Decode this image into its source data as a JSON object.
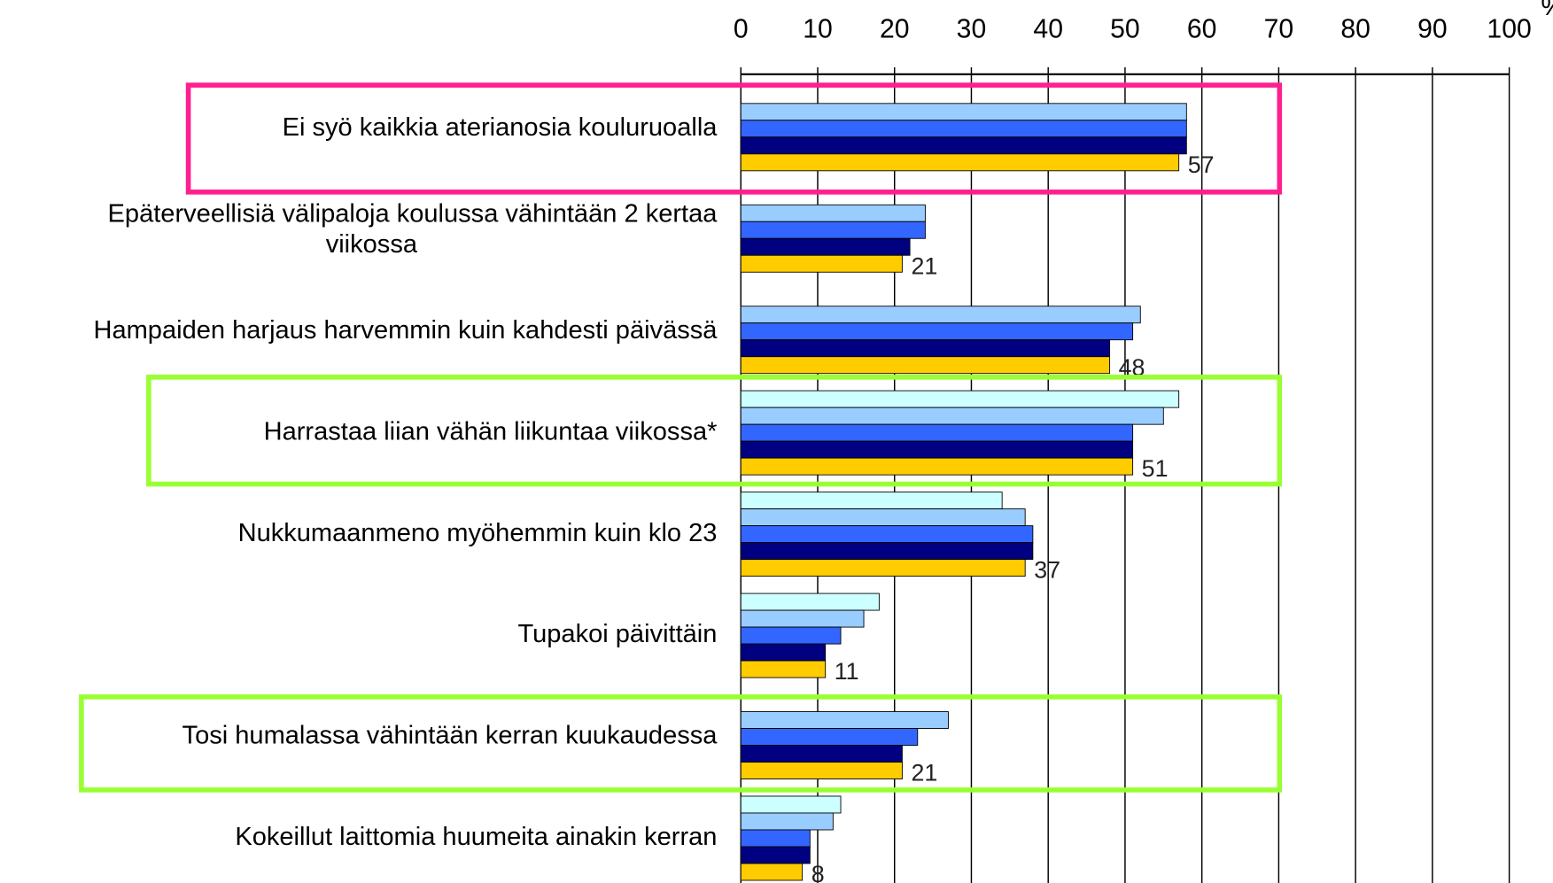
{
  "chart_data": {
    "type": "bar",
    "orientation": "horizontal",
    "xlabel": "%",
    "categories": [
      "Ei syö kaikkia aterianosia kouluruoalla",
      "Epäterveellisiä välipaloja koulussa vähintään 2 kertaa viikossa",
      "Hampaiden harjaus harvemmin kuin kahdesti päivässä",
      "Harrastaa liian vähän liikuntaa viikossa*",
      "Nukkumaanmeno myöhemmin kuin klo 23",
      "Tupakoi päivittäin",
      "Tosi humalassa vähintään kerran kuukaudessa",
      "Kokeillut laittomia huumeita ainakin kerran"
    ],
    "series": [
      {
        "color": "#ccffff",
        "values": [
          null,
          null,
          null,
          57,
          34,
          18,
          null,
          13
        ]
      },
      {
        "color": "#99ccff",
        "values": [
          58,
          24,
          52,
          55,
          37,
          16,
          27,
          12
        ]
      },
      {
        "color": "#3366ff",
        "values": [
          58,
          24,
          51,
          51,
          38,
          13,
          23,
          9
        ]
      },
      {
        "color": "#000080",
        "values": [
          58,
          22,
          48,
          51,
          38,
          11,
          21,
          9
        ]
      },
      {
        "color": "#ffcc00",
        "values": [
          57,
          21,
          48,
          51,
          37,
          11,
          21,
          8
        ],
        "show_labels": true
      }
    ],
    "xlim": [
      0,
      100
    ],
    "xticks": [
      0,
      10,
      20,
      30,
      40,
      50,
      60,
      70,
      80,
      90,
      100
    ],
    "grid": true
  }
}
